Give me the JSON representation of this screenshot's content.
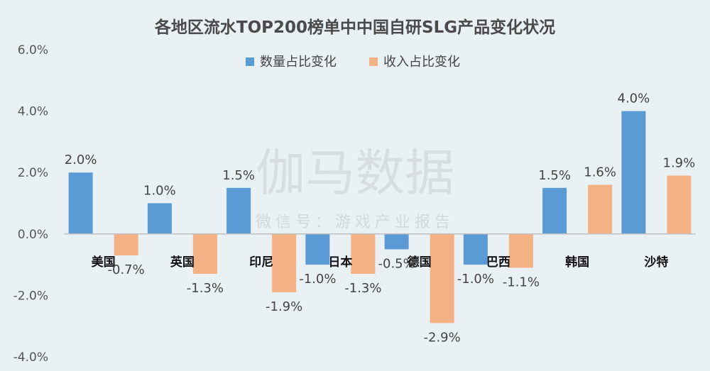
{
  "chart_data": {
    "type": "bar",
    "title": "各地区流水TOP200榜单中中国自研SLG产品变化状况",
    "categories": [
      "美国",
      "英国",
      "印尼",
      "日本",
      "德国",
      "巴西",
      "韩国",
      "沙特"
    ],
    "series": [
      {
        "name": "数量占比变化",
        "values": [
          2.0,
          1.0,
          1.5,
          -1.0,
          -0.5,
          -1.0,
          1.5,
          4.0
        ],
        "labels": [
          "2.0%",
          "1.0%",
          "1.5%",
          "-1.0%",
          "-0.5%",
          "-1.0%",
          "1.5%",
          "4.0%"
        ],
        "color": "#5b9bd5"
      },
      {
        "name": "收入占比变化",
        "values": [
          -0.7,
          -1.3,
          -1.9,
          -1.3,
          -2.9,
          -1.1,
          1.6,
          1.9
        ],
        "labels": [
          "-0.7%",
          "-1.3%",
          "-1.9%",
          "-1.3%",
          "-2.9%",
          "-1.1%",
          "1.6%",
          "1.9%"
        ],
        "color": "#f4b183"
      }
    ],
    "yticks": [
      "6.0%",
      "4.0%",
      "2.0%",
      "0.0%",
      "-2.0%",
      "-4.0%"
    ],
    "ylim": [
      -4,
      6
    ],
    "legend_position": "top-center",
    "grid": false
  },
  "watermark": {
    "main": "伽马数据",
    "sub": "微信号：游戏产业报告"
  }
}
